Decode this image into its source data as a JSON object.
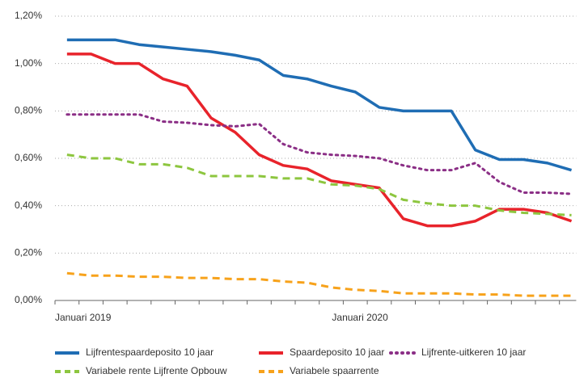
{
  "chart_data": {
    "type": "line",
    "categories": [
      "Januari 2019",
      null,
      null,
      null,
      null,
      null,
      null,
      null,
      null,
      null,
      null,
      null,
      "Januari 2020",
      null,
      null,
      null,
      null,
      null,
      null,
      null,
      null,
      null
    ],
    "series": [
      {
        "name": "Lijfrentespaardeposito 10 jaar",
        "color": "#1f6db4",
        "style": "solid",
        "values": [
          1.1,
          1.1,
          1.1,
          1.08,
          1.07,
          1.06,
          1.05,
          1.035,
          1.015,
          0.95,
          0.935,
          0.905,
          0.88,
          0.815,
          0.8,
          0.8,
          0.8,
          0.635,
          0.595,
          0.595,
          0.58,
          0.55
        ]
      },
      {
        "name": "Spaardeposito 10 jaar",
        "color": "#e8232b",
        "style": "solid",
        "values": [
          1.04,
          1.04,
          1.0,
          1.0,
          0.935,
          0.905,
          0.77,
          0.71,
          0.615,
          0.57,
          0.555,
          0.505,
          0.49,
          0.475,
          0.345,
          0.315,
          0.315,
          0.335,
          0.385,
          0.385,
          0.37,
          0.335
        ]
      },
      {
        "name": "Lijfrente-uitkeren 10 jaar",
        "color": "#8b2f86",
        "style": "dotted",
        "values": [
          0.785,
          0.785,
          0.785,
          0.785,
          0.755,
          0.75,
          0.74,
          0.735,
          0.745,
          0.66,
          0.625,
          0.615,
          0.61,
          0.6,
          0.57,
          0.55,
          0.55,
          0.58,
          0.5,
          0.455,
          0.455,
          0.45
        ]
      },
      {
        "name": "Variabele rente Lijfrente Opbouw",
        "color": "#8dc63f",
        "style": "dashed",
        "values": [
          0.615,
          0.6,
          0.6,
          0.575,
          0.575,
          0.56,
          0.525,
          0.525,
          0.525,
          0.515,
          0.515,
          0.49,
          0.485,
          0.47,
          0.425,
          0.41,
          0.4,
          0.4,
          0.38,
          0.37,
          0.365,
          0.36
        ]
      },
      {
        "name": "Variabele spaarrente",
        "color": "#f7a21b",
        "style": "dashed",
        "values": [
          0.115,
          0.105,
          0.105,
          0.1,
          0.1,
          0.095,
          0.095,
          0.09,
          0.09,
          0.08,
          0.075,
          0.055,
          0.045,
          0.04,
          0.03,
          0.03,
          0.03,
          0.025,
          0.025,
          0.02,
          0.02,
          0.02
        ]
      }
    ],
    "ylim": [
      0,
      1.2
    ],
    "yticks": [
      {
        "value": 0,
        "label": "0,00%"
      },
      {
        "value": 0.2,
        "label": "0,20%"
      },
      {
        "value": 0.4,
        "label": "0,40%"
      },
      {
        "value": 0.6,
        "label": "0,60%"
      },
      {
        "value": 0.8,
        "label": "0,80%"
      },
      {
        "value": 1.0,
        "label": "1,00%"
      },
      {
        "value": 1.2,
        "label": "1,20%"
      }
    ],
    "grid": true
  }
}
